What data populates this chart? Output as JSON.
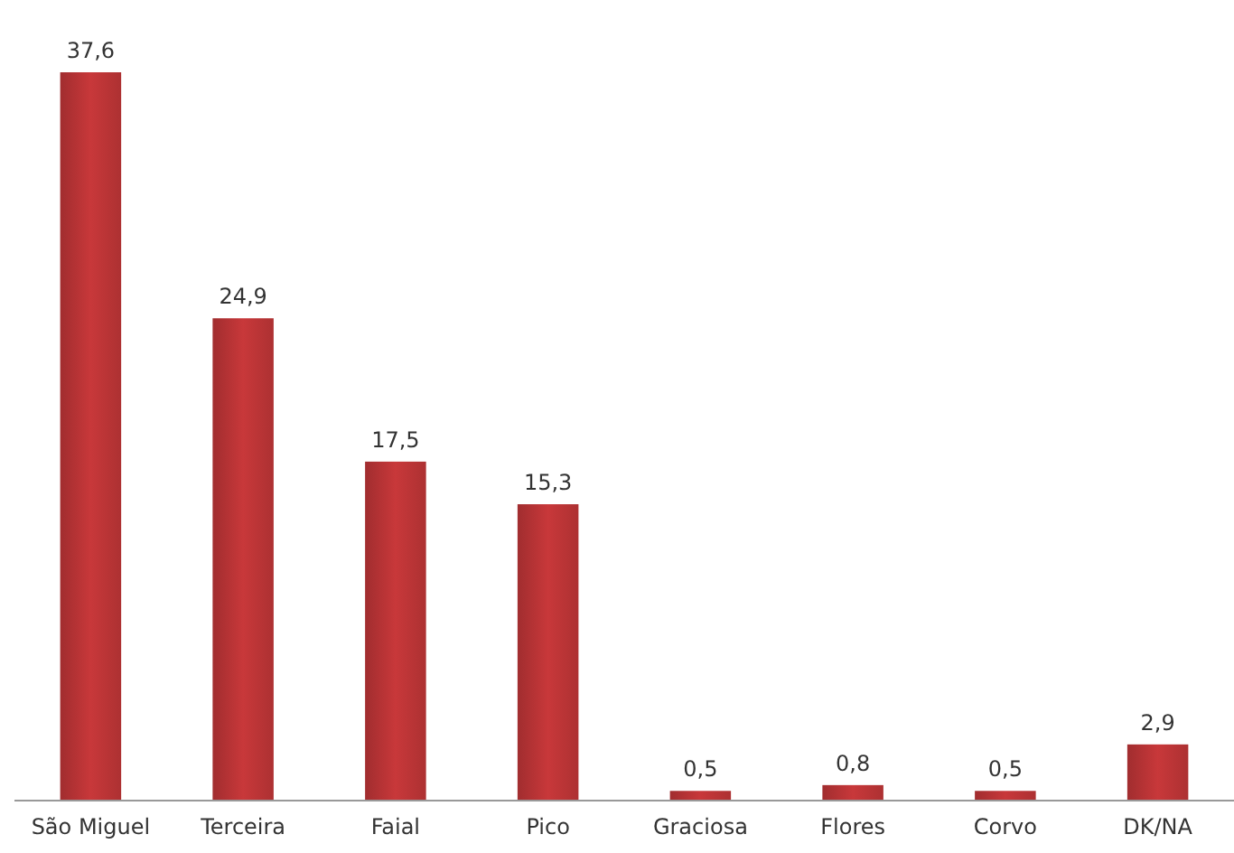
{
  "chart_data": {
    "type": "bar",
    "categories": [
      "São Miguel",
      "Terceira",
      "Faial",
      "Pico",
      "Graciosa",
      "Flores",
      "Corvo",
      "DK/NA"
    ],
    "values": [
      37.6,
      24.9,
      17.5,
      15.3,
      0.5,
      0.8,
      0.5,
      2.9
    ],
    "value_labels": [
      "37,6",
      "24,9",
      "17,5",
      "15,3",
      "0,5",
      "0,8",
      "0,5",
      "2,9"
    ],
    "color": "#c8383a"
  }
}
